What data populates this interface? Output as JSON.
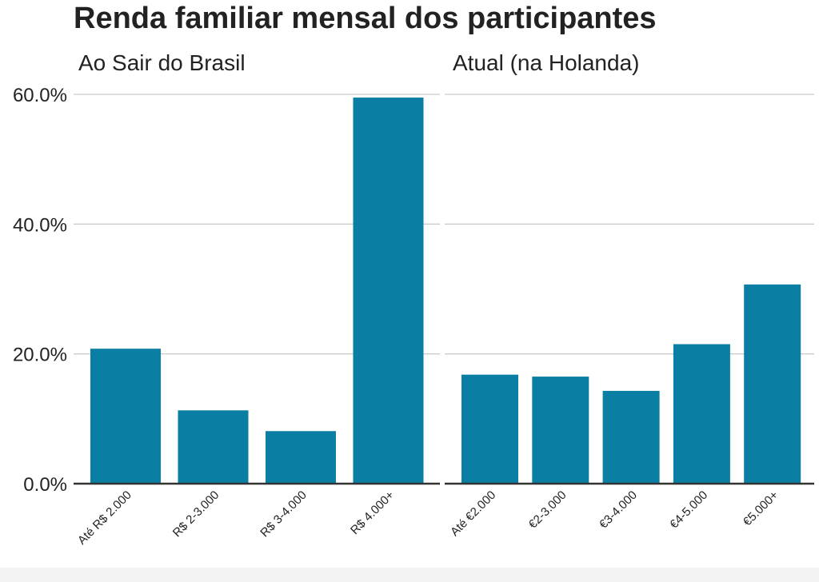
{
  "chart_data": {
    "type": "bar",
    "title": "Renda familiar mensal dos participantes",
    "ylim": [
      0,
      0.6
    ],
    "yticks": [
      "0.0%",
      "20.0%",
      "40.0%",
      "60.0%"
    ],
    "ytick_values": [
      0,
      0.2,
      0.4,
      0.6
    ],
    "grid": true,
    "color": "#0a7fa3",
    "panels": [
      {
        "subtitle": "Ao Sair do Brasil",
        "categories": [
          "Até R$ 2.000",
          "R$ 2-3.000",
          "R$ 3-4.000",
          "R$ 4.000+"
        ],
        "values": [
          0.208,
          0.113,
          0.081,
          0.595
        ]
      },
      {
        "subtitle": "Atual (na Holanda)",
        "categories": [
          "Até €2.000",
          "€2-3.000",
          "€3-4.000",
          "€4-5.000",
          "€5.000+"
        ],
        "values": [
          0.168,
          0.165,
          0.143,
          0.215,
          0.307
        ]
      }
    ]
  }
}
